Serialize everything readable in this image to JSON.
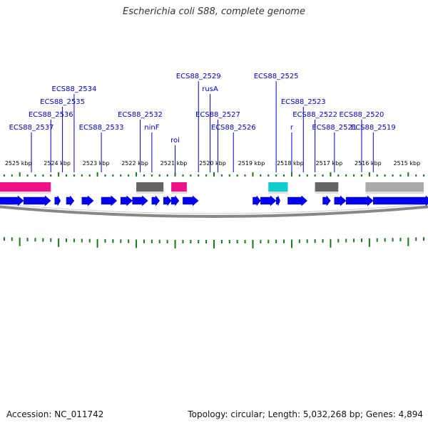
{
  "title": "Escherichia coli S88, complete genome",
  "footer": {
    "accession_label": "Accession: NC_011742",
    "summary_label": "Topology: circular; Length: 5,032,268 bp; Genes: 4,894"
  },
  "colors": {
    "gene_label": "#0000cc",
    "cds_arrow": "#0000ee",
    "tick": "#1a7a1a",
    "backbone": "#888888",
    "feature_pink": "#ee1188",
    "feature_gray": "#666666",
    "feature_cyan": "#11cccc",
    "feature_lightgray": "#aaaaaa"
  },
  "axis": {
    "unit": "kbp",
    "start_kbp": 2525.6,
    "end_kbp": 2514.4,
    "ticks": [
      {
        "kbp": 2525,
        "label": "2525 kbp"
      },
      {
        "kbp": 2524,
        "label": "2524 kbp"
      },
      {
        "kbp": 2523,
        "label": "2523 kbp"
      },
      {
        "kbp": 2522,
        "label": "2522 kbp"
      },
      {
        "kbp": 2521,
        "label": "2521 kbp"
      },
      {
        "kbp": 2520,
        "label": "2520 kbp"
      },
      {
        "kbp": 2519,
        "label": "2519 kbp"
      },
      {
        "kbp": 2518,
        "label": "2518 kbp"
      },
      {
        "kbp": 2517,
        "label": "2517 kbp"
      },
      {
        "kbp": 2516,
        "label": "2516 kbp"
      },
      {
        "kbp": 2515,
        "label": "2515 kbp"
      }
    ]
  },
  "genes": [
    {
      "label": "ECS88_2537",
      "kbp": 2524.7
    },
    {
      "label": "ECS88_2536",
      "kbp": 2524.2
    },
    {
      "label": "ECS88_2535",
      "kbp": 2523.9
    },
    {
      "label": "ECS88_2534",
      "kbp": 2523.6
    },
    {
      "label": "ECS88_2533",
      "kbp": 2522.9
    },
    {
      "label": "ECS88_2532",
      "kbp": 2521.9
    },
    {
      "label": "ninF",
      "kbp": 2521.6
    },
    {
      "label": "roi",
      "kbp": 2521.0
    },
    {
      "label": "ECS88_2529",
      "kbp": 2520.4
    },
    {
      "label": "rusA",
      "kbp": 2520.1
    },
    {
      "label": "ECS88_2527",
      "kbp": 2519.9
    },
    {
      "label": "ECS88_2526",
      "kbp": 2519.5
    },
    {
      "label": "ECS88_2525",
      "kbp": 2518.4
    },
    {
      "label": "r",
      "kbp": 2518.0
    },
    {
      "label": "ECS88_2523",
      "kbp": 2517.7
    },
    {
      "label": "ECS88_2522",
      "kbp": 2517.4
    },
    {
      "label": "ECS88_2521",
      "kbp": 2516.9
    },
    {
      "label": "ECS88_2520",
      "kbp": 2516.2
    },
    {
      "label": "ECS88_2519",
      "kbp": 2515.9
    }
  ],
  "cds": [
    {
      "start": 2525.6,
      "end": 2524.9
    },
    {
      "start": 2524.9,
      "end": 2524.2
    },
    {
      "start": 2524.1,
      "end": 2523.95
    },
    {
      "start": 2523.8,
      "end": 2523.6
    },
    {
      "start": 2523.4,
      "end": 2523.1
    },
    {
      "start": 2522.9,
      "end": 2522.5
    },
    {
      "start": 2522.4,
      "end": 2522.1
    },
    {
      "start": 2522.1,
      "end": 2521.7
    },
    {
      "start": 2521.6,
      "end": 2521.4
    },
    {
      "start": 2521.3,
      "end": 2521.1
    },
    {
      "start": 2521.1,
      "end": 2520.9
    },
    {
      "start": 2520.8,
      "end": 2520.4
    },
    {
      "start": 2519.0,
      "end": 2518.8
    },
    {
      "start": 2518.8,
      "end": 2518.4
    },
    {
      "start": 2518.4,
      "end": 2518.3
    },
    {
      "start": 2518.1,
      "end": 2517.6
    },
    {
      "start": 2517.2,
      "end": 2517.0
    },
    {
      "start": 2516.9,
      "end": 2516.6
    },
    {
      "start": 2516.6,
      "end": 2515.9
    },
    {
      "start": 2515.9,
      "end": 2514.4
    }
  ],
  "features": [
    {
      "start": 2525.6,
      "end": 2524.2,
      "color": "#ee1188"
    },
    {
      "start": 2522.0,
      "end": 2521.3,
      "color": "#666666"
    },
    {
      "start": 2521.1,
      "end": 2520.7,
      "color": "#ee1188"
    },
    {
      "start": 2518.6,
      "end": 2518.1,
      "color": "#11cccc"
    },
    {
      "start": 2517.4,
      "end": 2516.8,
      "color": "#666666"
    },
    {
      "start": 2516.1,
      "end": 2514.6,
      "color": "#aaaaaa"
    }
  ]
}
